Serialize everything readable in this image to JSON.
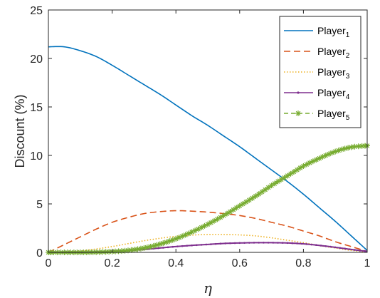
{
  "chart_data": {
    "type": "line",
    "xlabel": "η",
    "ylabel": "Discount (%)",
    "xlim": [
      0,
      1
    ],
    "ylim": [
      0,
      25
    ],
    "xticks": [
      0,
      0.2,
      0.4,
      0.6,
      0.8,
      1
    ],
    "xtick_labels": [
      "0",
      "0.2",
      "0.4",
      "0.6",
      "0.8",
      "1"
    ],
    "yticks": [
      0,
      5,
      10,
      15,
      20,
      25
    ],
    "ytick_labels": [
      "0",
      "5",
      "10",
      "15",
      "20",
      "25"
    ],
    "grid": false,
    "legend_position": "top-right",
    "x": [
      0.0,
      0.05,
      0.1,
      0.15,
      0.2,
      0.25,
      0.3,
      0.35,
      0.4,
      0.45,
      0.5,
      0.55,
      0.6,
      0.65,
      0.7,
      0.75,
      0.8,
      0.85,
      0.9,
      0.95,
      1.0
    ],
    "series": [
      {
        "name": "Player",
        "subscript": "1",
        "color": "#0072BD",
        "style": "solid",
        "values": [
          21.2,
          21.2,
          20.8,
          20.2,
          19.3,
          18.3,
          17.3,
          16.3,
          15.2,
          14.1,
          13.1,
          12.0,
          10.9,
          9.7,
          8.5,
          7.3,
          6.0,
          4.6,
          3.2,
          1.7,
          0.2
        ]
      },
      {
        "name": "Player",
        "subscript": "2",
        "color": "#D95319",
        "style": "dashed",
        "values": [
          0.0,
          0.8,
          1.6,
          2.4,
          3.1,
          3.6,
          4.0,
          4.2,
          4.3,
          4.25,
          4.15,
          4.0,
          3.8,
          3.5,
          3.1,
          2.7,
          2.2,
          1.7,
          1.1,
          0.6,
          0.1
        ]
      },
      {
        "name": "Player",
        "subscript": "3",
        "color": "#EDB120",
        "style": "dotted",
        "values": [
          0.0,
          0.05,
          0.15,
          0.35,
          0.6,
          0.9,
          1.2,
          1.45,
          1.65,
          1.78,
          1.85,
          1.85,
          1.8,
          1.7,
          1.5,
          1.25,
          1.0,
          0.7,
          0.45,
          0.2,
          0.05
        ]
      },
      {
        "name": "Player",
        "subscript": "4",
        "color": "#7E2F8E",
        "style": "solid-marked",
        "values": [
          0.0,
          0.0,
          0.0,
          0.05,
          0.1,
          0.2,
          0.3,
          0.45,
          0.6,
          0.72,
          0.82,
          0.92,
          0.97,
          1.0,
          1.0,
          0.97,
          0.88,
          0.72,
          0.52,
          0.3,
          0.1
        ]
      },
      {
        "name": "Player",
        "subscript": "5",
        "color": "#77AC30",
        "style": "dash-star",
        "values": [
          0.0,
          0.0,
          0.0,
          0.02,
          0.08,
          0.2,
          0.45,
          0.85,
          1.4,
          2.1,
          2.9,
          3.8,
          4.8,
          5.8,
          6.9,
          7.9,
          8.9,
          9.7,
          10.4,
          10.85,
          11.0
        ]
      }
    ]
  }
}
